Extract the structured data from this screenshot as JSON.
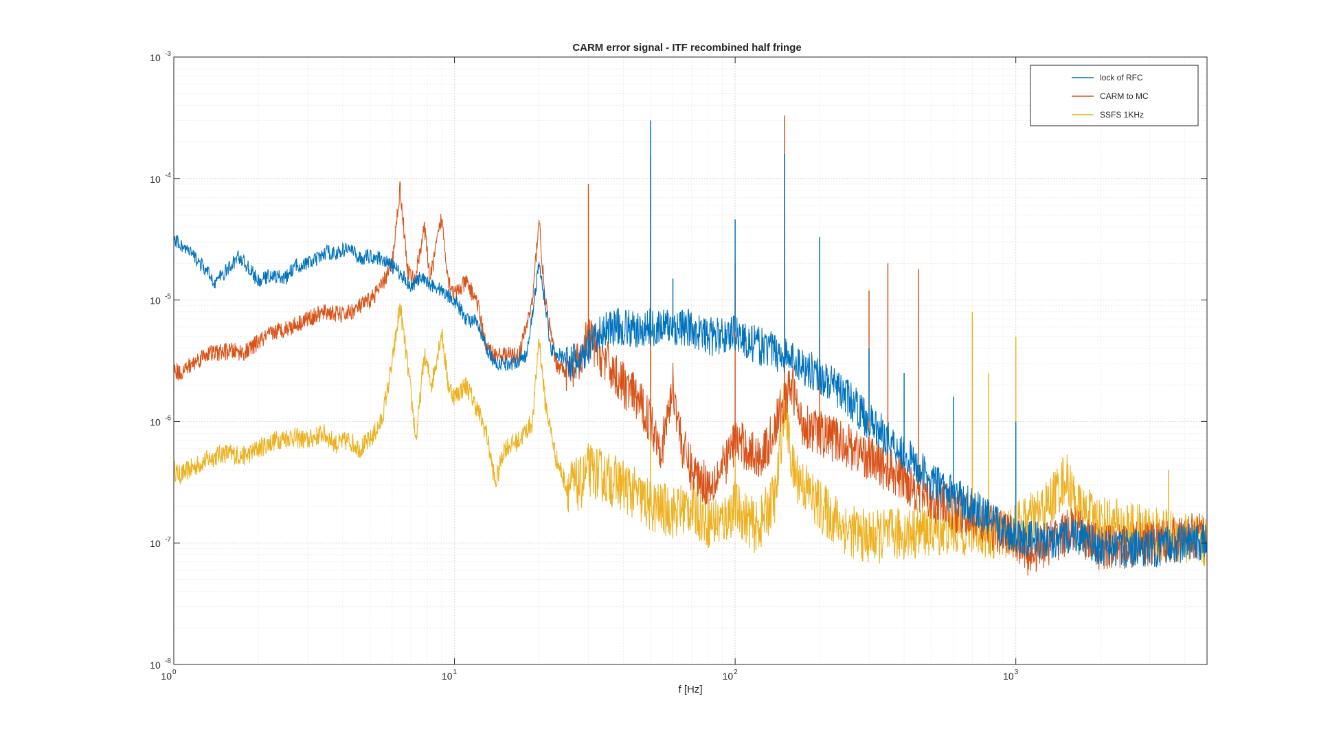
{
  "chart_data": {
    "type": "line",
    "title": "CARM error signal - ITF recombined half fringe",
    "xlabel": "f [Hz]",
    "ylabel": "",
    "xscale": "log",
    "yscale": "log",
    "xlim": [
      1,
      4800
    ],
    "ylim": [
      1e-08,
      0.001
    ],
    "grid": true,
    "minor_grid": true,
    "legend_location": "top-right",
    "x_ticks": [
      {
        "base": "10",
        "exp": "0",
        "value": 1
      },
      {
        "base": "10",
        "exp": "1",
        "value": 10
      },
      {
        "base": "10",
        "exp": "2",
        "value": 100
      },
      {
        "base": "10",
        "exp": "3",
        "value": 1000
      }
    ],
    "y_ticks": [
      {
        "base": "10",
        "exp": "-8",
        "value": 1e-08
      },
      {
        "base": "10",
        "exp": "-7",
        "value": 1e-07
      },
      {
        "base": "10",
        "exp": "-6",
        "value": 1e-06
      },
      {
        "base": "10",
        "exp": "-5",
        "value": 1e-05
      },
      {
        "base": "10",
        "exp": "-4",
        "value": 0.0001
      },
      {
        "base": "10",
        "exp": "-3",
        "value": 0.001
      }
    ],
    "series": [
      {
        "name": "lock of RFC",
        "color": "#0072BD",
        "noise": 0.1,
        "points": [
          [
            1,
            3.2e-05
          ],
          [
            1.2,
            2.2e-05
          ],
          [
            1.4,
            1.4e-05
          ],
          [
            1.6,
            1.9e-05
          ],
          [
            1.7,
            2.3e-05
          ],
          [
            1.9,
            1.7e-05
          ],
          [
            2.0,
            1.4e-05
          ],
          [
            2.2,
            1.6e-05
          ],
          [
            2.5,
            1.5e-05
          ],
          [
            2.7,
            1.9e-05
          ],
          [
            3.0,
            2e-05
          ],
          [
            3.3,
            2.2e-05
          ],
          [
            3.5,
            2.5e-05
          ],
          [
            3.8,
            2.4e-05
          ],
          [
            4.2,
            2.7e-05
          ],
          [
            4.6,
            2.2e-05
          ],
          [
            5.0,
            2.3e-05
          ],
          [
            5.5,
            2.2e-05
          ],
          [
            6.0,
            1.9e-05
          ],
          [
            6.5,
            1.6e-05
          ],
          [
            7.0,
            1.3e-05
          ],
          [
            7.5,
            1.5e-05
          ],
          [
            8.0,
            1.4e-05
          ],
          [
            9.0,
            1.2e-05
          ],
          [
            10,
            1e-05
          ],
          [
            11,
            7e-06
          ],
          [
            12,
            6.5e-06
          ],
          [
            13,
            4e-06
          ],
          [
            14,
            3e-06
          ],
          [
            16,
            3e-06
          ],
          [
            18,
            3.5e-06
          ],
          [
            19,
            8e-06
          ],
          [
            20,
            2e-05
          ],
          [
            21,
            1e-05
          ],
          [
            22,
            4e-06
          ],
          [
            25,
            3.2e-06
          ],
          [
            28,
            3e-06
          ],
          [
            30,
            4e-06
          ],
          [
            35,
            6e-06
          ],
          [
            40,
            6e-06
          ],
          [
            45,
            5.5e-06
          ],
          [
            50,
            6e-06
          ],
          [
            60,
            6e-06
          ],
          [
            70,
            5.8e-06
          ],
          [
            80,
            5e-06
          ],
          [
            90,
            5e-06
          ],
          [
            100,
            5.5e-06
          ],
          [
            110,
            4.5e-06
          ],
          [
            130,
            4e-06
          ],
          [
            150,
            3.5e-06
          ],
          [
            170,
            3e-06
          ],
          [
            200,
            2.4e-06
          ],
          [
            250,
            1.6e-06
          ],
          [
            300,
            1e-06
          ],
          [
            400,
            5.5e-07
          ],
          [
            500,
            3.2e-07
          ],
          [
            700,
            2e-07
          ],
          [
            900,
            1.3e-07
          ],
          [
            1100,
            1.1e-07
          ],
          [
            1300,
            1e-07
          ],
          [
            1600,
            1.2e-07
          ],
          [
            2000,
            9e-08
          ],
          [
            3000,
            9e-08
          ],
          [
            4000,
            1e-07
          ],
          [
            4800,
            1e-07
          ]
        ],
        "peaks": [
          [
            50,
            0.0003
          ],
          [
            150,
            0.00016
          ],
          [
            100,
            4.6e-05
          ],
          [
            200,
            3.3e-05
          ],
          [
            60,
            1.5e-05
          ],
          [
            300,
            4e-06
          ],
          [
            400,
            2.5e-06
          ],
          [
            600,
            1.6e-06
          ],
          [
            1000,
            1e-06
          ]
        ]
      },
      {
        "name": "CARM to MC",
        "color": "#D95319",
        "noise": 0.12,
        "points": [
          [
            1,
            2.7e-06
          ],
          [
            1.05,
            2.5e-06
          ],
          [
            1.3,
            3.6e-06
          ],
          [
            1.6,
            3.8e-06
          ],
          [
            1.8,
            3.7e-06
          ],
          [
            2.0,
            4.5e-06
          ],
          [
            2.3,
            5.5e-06
          ],
          [
            2.6,
            6e-06
          ],
          [
            3.0,
            7e-06
          ],
          [
            3.5,
            8e-06
          ],
          [
            4.0,
            7.5e-06
          ],
          [
            4.5,
            8.5e-06
          ],
          [
            5.0,
            1e-05
          ],
          [
            5.5,
            1.3e-05
          ],
          [
            6.0,
            2e-05
          ],
          [
            6.4,
            8.5e-05
          ],
          [
            6.8,
            1.8e-05
          ],
          [
            7.2,
            1.4e-05
          ],
          [
            7.8,
            4e-05
          ],
          [
            8.2,
            1.5e-05
          ],
          [
            9.0,
            4.8e-05
          ],
          [
            9.5,
            1.5e-05
          ],
          [
            10,
            1.1e-05
          ],
          [
            11,
            1.4e-05
          ],
          [
            12,
            1e-05
          ],
          [
            13,
            4e-06
          ],
          [
            14,
            3.5e-06
          ],
          [
            17,
            3.5e-06
          ],
          [
            19,
            1e-05
          ],
          [
            20,
            4.8e-05
          ],
          [
            21,
            1e-05
          ],
          [
            23,
            3e-06
          ],
          [
            26,
            2.5e-06
          ],
          [
            28,
            3e-06
          ],
          [
            30,
            5e-06
          ],
          [
            35,
            3e-06
          ],
          [
            40,
            2e-06
          ],
          [
            45,
            1.5e-06
          ],
          [
            50,
            1e-06
          ],
          [
            55,
            6e-07
          ],
          [
            60,
            2e-06
          ],
          [
            65,
            6e-07
          ],
          [
            70,
            4e-07
          ],
          [
            80,
            3e-07
          ],
          [
            90,
            4e-07
          ],
          [
            100,
            7e-07
          ],
          [
            110,
            6e-07
          ],
          [
            120,
            5e-07
          ],
          [
            130,
            6e-07
          ],
          [
            150,
            1.5e-06
          ],
          [
            160,
            2e-06
          ],
          [
            170,
            1e-06
          ],
          [
            200,
            8e-07
          ],
          [
            250,
            6.5e-07
          ],
          [
            300,
            5e-07
          ],
          [
            400,
            3.3e-07
          ],
          [
            500,
            2.3e-07
          ],
          [
            700,
            1.6e-07
          ],
          [
            900,
            1.2e-07
          ],
          [
            1000,
            1.1e-07
          ],
          [
            1100,
            8e-08
          ],
          [
            1300,
            1e-07
          ],
          [
            1600,
            1.3e-07
          ],
          [
            2000,
            9e-08
          ],
          [
            3000,
            1e-07
          ],
          [
            4000,
            1.1e-07
          ],
          [
            4800,
            1.2e-07
          ]
        ],
        "peaks": [
          [
            150,
            0.00033
          ],
          [
            50,
            0.00015
          ],
          [
            30,
            9e-05
          ],
          [
            100,
            2e-05
          ],
          [
            350,
            2e-05
          ],
          [
            300,
            1.2e-05
          ],
          [
            450,
            1.8e-05
          ],
          [
            200,
            5e-06
          ]
        ]
      },
      {
        "name": "SSFS 1KHz",
        "color": "#EDB120",
        "noise": 0.14,
        "points": [
          [
            1,
            4e-07
          ],
          [
            1.05,
            3.6e-07
          ],
          [
            1.3,
            4.8e-07
          ],
          [
            1.5,
            5.5e-07
          ],
          [
            1.8,
            5.2e-07
          ],
          [
            2.0,
            6e-07
          ],
          [
            2.3,
            7e-07
          ],
          [
            2.6,
            7.5e-07
          ],
          [
            3.0,
            7e-07
          ],
          [
            3.4,
            8e-07
          ],
          [
            3.8,
            6.5e-07
          ],
          [
            4.2,
            7e-07
          ],
          [
            4.6,
            6e-07
          ],
          [
            5.0,
            7e-07
          ],
          [
            5.5,
            1e-06
          ],
          [
            6.0,
            3e-06
          ],
          [
            6.4,
            9e-06
          ],
          [
            6.8,
            3e-06
          ],
          [
            7.3,
            7e-07
          ],
          [
            7.8,
            3.5e-06
          ],
          [
            8.3,
            2e-06
          ],
          [
            9.0,
            5.5e-06
          ],
          [
            9.5,
            2e-06
          ],
          [
            10,
            1.6e-06
          ],
          [
            11,
            2e-06
          ],
          [
            12,
            1.3e-06
          ],
          [
            13,
            8e-07
          ],
          [
            14,
            3e-07
          ],
          [
            15,
            6e-07
          ],
          [
            17,
            7e-07
          ],
          [
            19,
            1e-06
          ],
          [
            20,
            5e-06
          ],
          [
            21,
            1.5e-06
          ],
          [
            23,
            5e-07
          ],
          [
            25,
            3e-07
          ],
          [
            28,
            3e-07
          ],
          [
            30,
            4e-07
          ],
          [
            40,
            3e-07
          ],
          [
            50,
            2e-07
          ],
          [
            60,
            1.8e-07
          ],
          [
            70,
            2e-07
          ],
          [
            80,
            1.5e-07
          ],
          [
            90,
            1.5e-07
          ],
          [
            100,
            2e-07
          ],
          [
            120,
            1.3e-07
          ],
          [
            140,
            2.5e-07
          ],
          [
            150,
            1.5e-06
          ],
          [
            160,
            4e-07
          ],
          [
            200,
            2e-07
          ],
          [
            250,
            1.3e-07
          ],
          [
            300,
            1.1e-07
          ],
          [
            400,
            1.2e-07
          ],
          [
            500,
            1.3e-07
          ],
          [
            700,
            1.3e-07
          ],
          [
            900,
            1.2e-07
          ],
          [
            1100,
            1.5e-07
          ],
          [
            1300,
            2e-07
          ],
          [
            1500,
            3.5e-07
          ],
          [
            1700,
            1.8e-07
          ],
          [
            2000,
            1.5e-07
          ],
          [
            3000,
            1.2e-07
          ],
          [
            4000,
            1.1e-07
          ],
          [
            4800,
            1e-07
          ]
        ],
        "peaks": [
          [
            1000,
            5e-06
          ],
          [
            50,
            2e-05
          ],
          [
            150,
            3e-06
          ],
          [
            700,
            8e-06
          ],
          [
            800,
            2.5e-06
          ],
          [
            100,
            1e-06
          ],
          [
            3500,
            4e-07
          ]
        ]
      }
    ]
  }
}
